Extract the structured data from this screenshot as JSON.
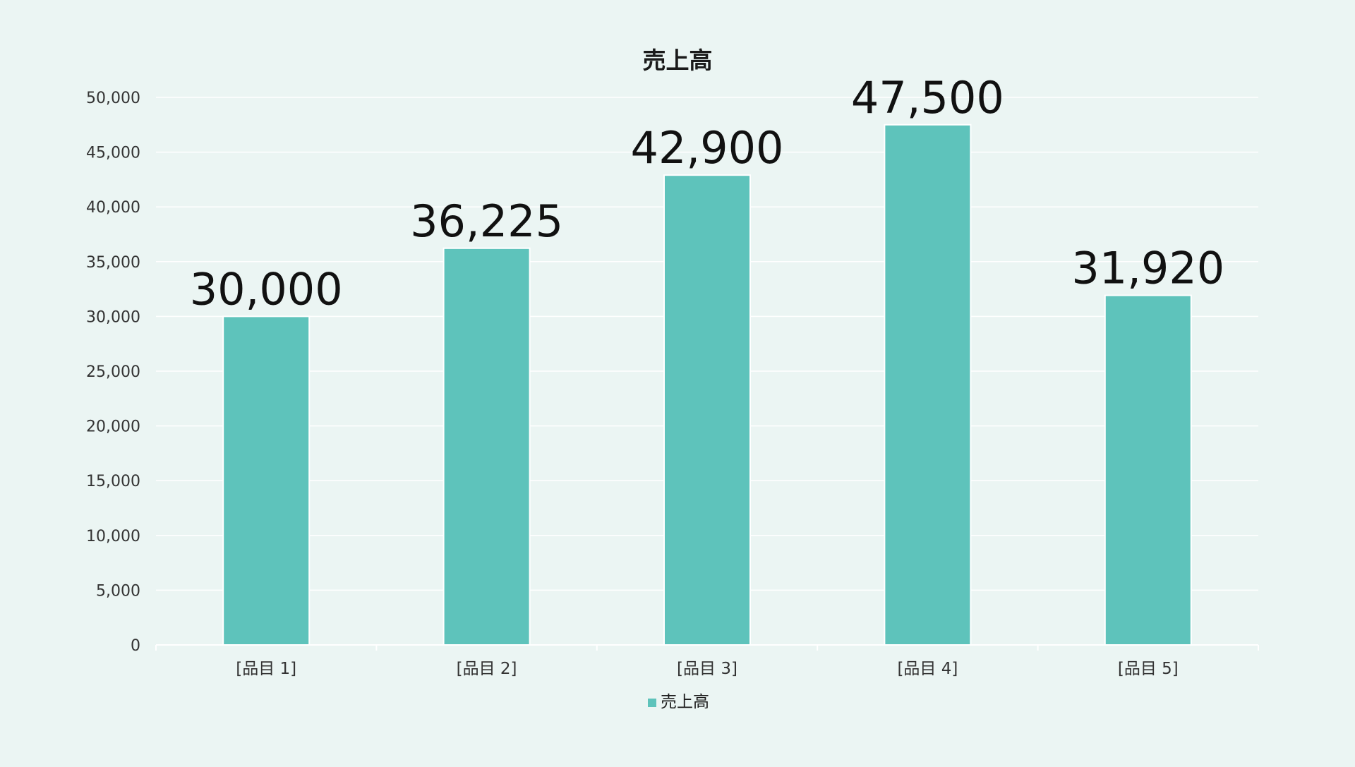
{
  "chart_data": {
    "type": "bar",
    "title": "売上高",
    "categories": [
      "[品目 1]",
      "[品目 2]",
      "[品目 3]",
      "[品目 4]",
      "[品目 5]"
    ],
    "series": [
      {
        "name": "売上高",
        "values": [
          30000,
          36225,
          42900,
          47500,
          31920
        ],
        "data_labels": [
          "30,000",
          "36,225",
          "42,900",
          "47,500",
          "31,920"
        ],
        "color": "#5ec3bb"
      }
    ],
    "ylim": [
      0,
      50000
    ],
    "y_ticks": [
      0,
      5000,
      10000,
      15000,
      20000,
      25000,
      30000,
      35000,
      40000,
      45000,
      50000
    ],
    "y_tick_labels": [
      "0",
      "5,000",
      "10,000",
      "15,000",
      "20,000",
      "25,000",
      "30,000",
      "35,000",
      "40,000",
      "45,000",
      "50,000"
    ],
    "xlabel": "",
    "ylabel": "",
    "grid": true,
    "legend": "bottom"
  },
  "colors": {
    "background": "#ebf5f3",
    "gridline": "#ffffff",
    "bar": "#5ec3bb",
    "bar_edge": "#ffffff"
  }
}
